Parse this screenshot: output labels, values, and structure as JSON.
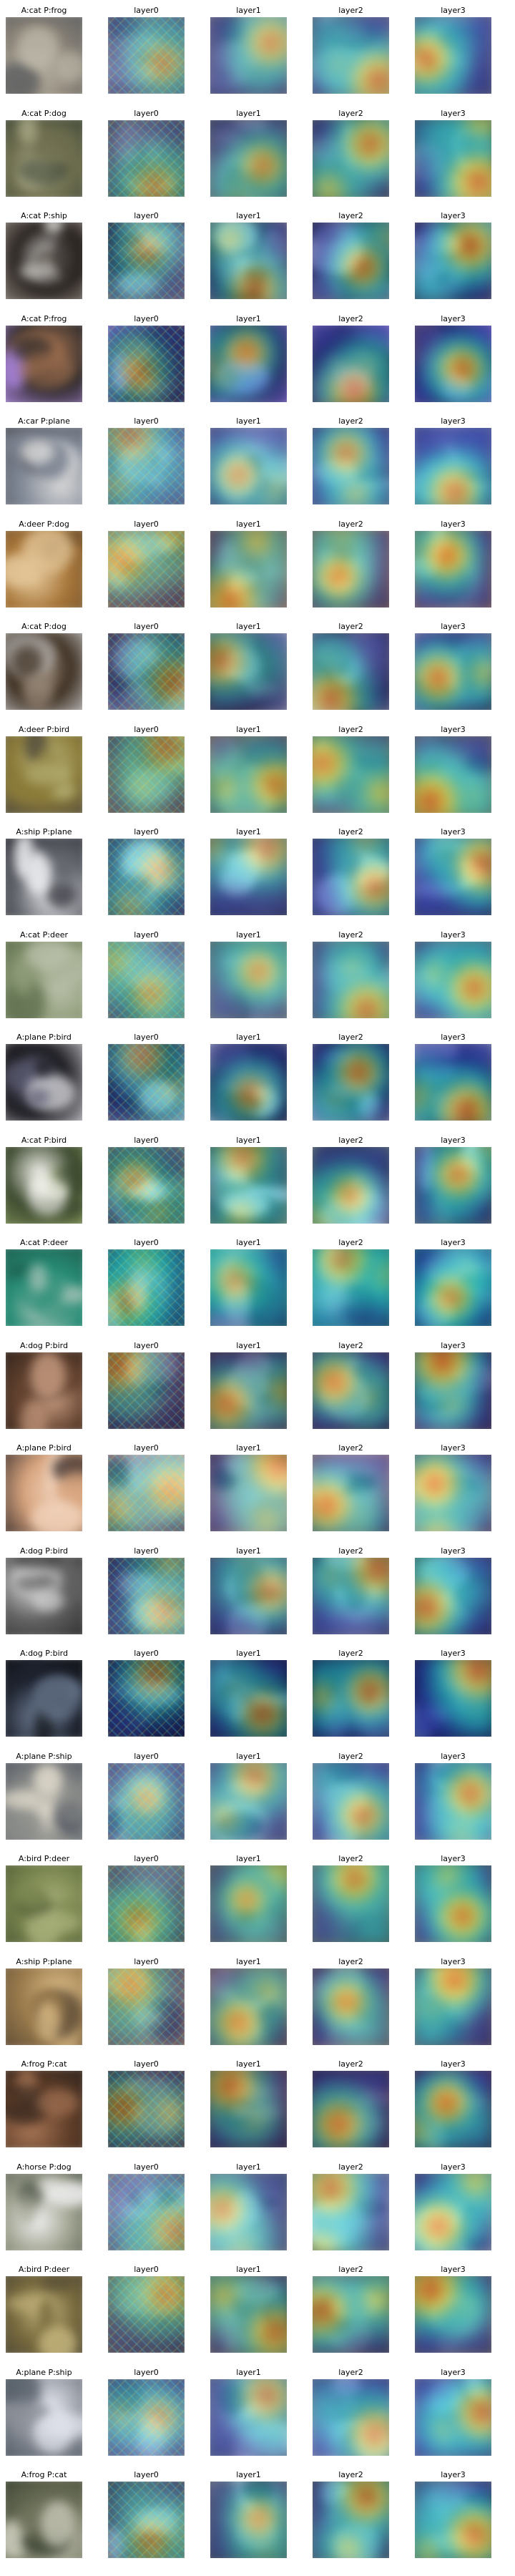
{
  "column_labels": [
    "layer0",
    "layer1",
    "layer2",
    "layer3"
  ],
  "palette": {
    "heat_low": "#1f2a9a",
    "heat_mid": "#22c4d8",
    "heat_high": "#f5e84a",
    "heat_max": "#d8281c"
  },
  "rows": [
    {
      "title": "A:cat P:frog",
      "palette": [
        "#8c8478",
        "#bdb8a9",
        "#5e6062"
      ]
    },
    {
      "title": "A:cat P:dog",
      "palette": [
        "#6d6d4e",
        "#b2b08d",
        "#3d4738"
      ]
    },
    {
      "title": "A:cat P:ship",
      "palette": [
        "#2b2522",
        "#d5d3cf",
        "#8a8179"
      ]
    },
    {
      "title": "A:cat P:frog",
      "palette": [
        "#2f2b2b",
        "#9d6e4e",
        "#a782d8"
      ]
    },
    {
      "title": "A:car P:plane",
      "palette": [
        "#7f8795",
        "#d7d7d7",
        "#4f5057"
      ]
    },
    {
      "title": "A:deer P:dog",
      "palette": [
        "#a7763a",
        "#e4c799",
        "#6b4d2c"
      ]
    },
    {
      "title": "A:cat P:dog",
      "palette": [
        "#403224",
        "#9a8a7a",
        "#c0c0c0"
      ]
    },
    {
      "title": "A:deer P:bird",
      "palette": [
        "#8c7c3a",
        "#b8b47a",
        "#504a3c"
      ]
    },
    {
      "title": "A:ship P:plane",
      "palette": [
        "#61636b",
        "#eceef1",
        "#32333a"
      ]
    },
    {
      "title": "A:cat P:deer",
      "palette": [
        "#8e9b78",
        "#b9bfa9",
        "#5c6d4b"
      ]
    },
    {
      "title": "A:plane P:bird",
      "palette": [
        "#1d1d22",
        "#5f5f77",
        "#c4c4c9"
      ]
    },
    {
      "title": "A:cat P:bird",
      "palette": [
        "#3d4a2f",
        "#f0f0ea",
        "#81945a"
      ]
    },
    {
      "title": "A:cat P:deer",
      "palette": [
        "#288d76",
        "#cbd2c9",
        "#1d5c4d"
      ]
    },
    {
      "title": "A:dog P:bird",
      "palette": [
        "#61412e",
        "#c69a7f",
        "#2e211b"
      ]
    },
    {
      "title": "A:plane P:bird",
      "palette": [
        "#d8a57f",
        "#f2d5bf",
        "#3c2f2c"
      ]
    },
    {
      "title": "A:dog P:bird",
      "palette": [
        "#616161",
        "#d7d7d7",
        "#2d2d2d"
      ]
    },
    {
      "title": "A:dog P:bird",
      "palette": [
        "#1f2430",
        "#6f7f96",
        "#101216"
      ]
    },
    {
      "title": "A:plane P:ship",
      "palette": [
        "#8a8c89",
        "#ddd7c9",
        "#505460"
      ]
    },
    {
      "title": "A:bird P:deer",
      "palette": [
        "#7b8750",
        "#a5ad77",
        "#4f5a35"
      ]
    },
    {
      "title": "A:ship P:plane",
      "palette": [
        "#9a7b4c",
        "#dfc08b",
        "#5c4a35"
      ]
    },
    {
      "title": "A:frog P:cat",
      "palette": [
        "#5d3c27",
        "#a87656",
        "#2f241e"
      ]
    },
    {
      "title": "A:horse P:dog",
      "palette": [
        "#9fa28f",
        "#efefef",
        "#4f574b"
      ]
    },
    {
      "title": "A:bird P:deer",
      "palette": [
        "#7a6c3f",
        "#c4b57d",
        "#4d4634"
      ]
    },
    {
      "title": "A:plane P:ship",
      "palette": [
        "#8c9099",
        "#e0e3ec",
        "#4d5660"
      ]
    },
    {
      "title": "A:frog P:cat",
      "palette": [
        "#6c7059",
        "#d0d0c0",
        "#3c4432"
      ]
    }
  ]
}
